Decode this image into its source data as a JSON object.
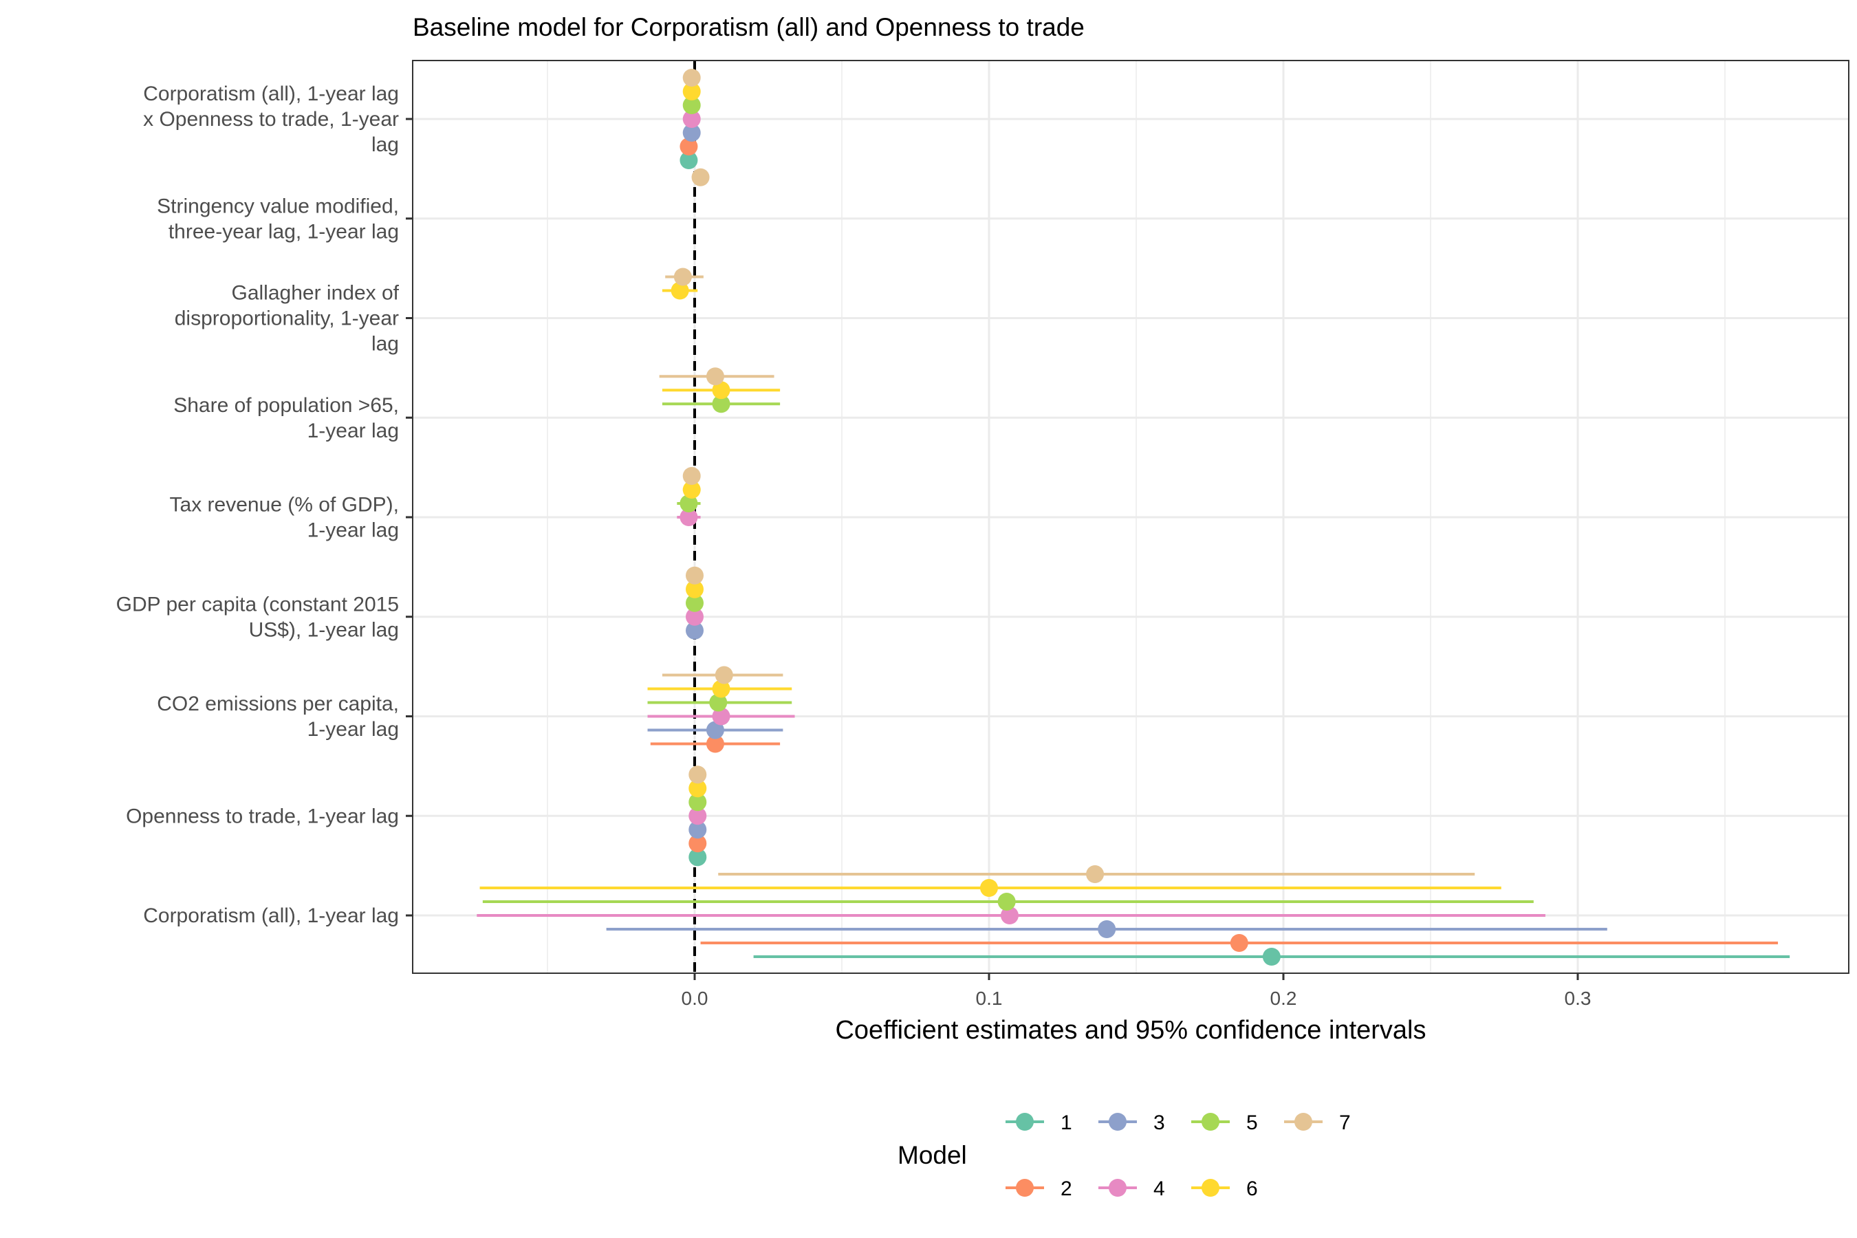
{
  "chart_data": {
    "type": "scatter",
    "subtype": "coefficient-plot-with-confidence-intervals",
    "title": "Baseline model for Corporatism (all) and Openness to trade",
    "xlabel": "Coefficient estimates and 95% confidence intervals",
    "ylabel": "",
    "xlim": [
      -0.097,
      0.39
    ],
    "x_ticks": [
      {
        "value": 0.0,
        "label": "0.0"
      },
      {
        "value": 0.1,
        "label": "0.1"
      },
      {
        "value": 0.2,
        "label": "0.2"
      },
      {
        "value": 0.3,
        "label": "0.3"
      }
    ],
    "reference_line": {
      "x": 0,
      "style": "dashed"
    },
    "grid": true,
    "legend": {
      "title": "Model",
      "position": "bottom",
      "rows": 2
    },
    "categories": [
      "Corporatism (all), 1-year lag\nx Openness to trade, 1-year\nlag",
      "Stringency value modified,\nthree-year lag, 1-year lag",
      "Gallagher index of\ndisproportionality, 1-year\nlag",
      "Share of population >65,\n1-year lag",
      "Tax revenue (% of GDP),\n1-year lag",
      "GDP per capita (constant 2015\nUS$), 1-year lag",
      "CO2 emissions per capita,\n1-year lag",
      "Openness to trade, 1-year lag",
      "Corporatism (all), 1-year lag"
    ],
    "series": [
      {
        "name": "1",
        "color": "#66C2A5",
        "estimates": [
          {
            "category": 0,
            "est": -0.002,
            "lo": -0.003,
            "hi": -0.001
          },
          {
            "category": 7,
            "est": 0.001,
            "lo": 0.0,
            "hi": 0.002
          },
          {
            "category": 8,
            "est": 0.196,
            "lo": 0.02,
            "hi": 0.372
          }
        ]
      },
      {
        "name": "2",
        "color": "#FC8D62",
        "estimates": [
          {
            "category": 0,
            "est": -0.002,
            "lo": -0.003,
            "hi": -0.001
          },
          {
            "category": 6,
            "est": 0.007,
            "lo": -0.015,
            "hi": 0.029
          },
          {
            "category": 7,
            "est": 0.001,
            "lo": 0.0,
            "hi": 0.002
          },
          {
            "category": 8,
            "est": 0.185,
            "lo": 0.002,
            "hi": 0.368
          }
        ]
      },
      {
        "name": "3",
        "color": "#8DA0CB",
        "estimates": [
          {
            "category": 0,
            "est": -0.001,
            "lo": -0.002,
            "hi": 0.0
          },
          {
            "category": 5,
            "est": 0.0,
            "lo": 0.0,
            "hi": 0.0
          },
          {
            "category": 6,
            "est": 0.007,
            "lo": -0.016,
            "hi": 0.03
          },
          {
            "category": 7,
            "est": 0.001,
            "lo": 0.0,
            "hi": 0.002
          },
          {
            "category": 8,
            "est": 0.14,
            "lo": -0.03,
            "hi": 0.31
          }
        ]
      },
      {
        "name": "4",
        "color": "#E78AC3",
        "estimates": [
          {
            "category": 0,
            "est": -0.001,
            "lo": -0.002,
            "hi": 0.0
          },
          {
            "category": 4,
            "est": -0.002,
            "lo": -0.006,
            "hi": 0.002
          },
          {
            "category": 5,
            "est": 0.0,
            "lo": 0.0,
            "hi": 0.0
          },
          {
            "category": 6,
            "est": 0.009,
            "lo": -0.016,
            "hi": 0.034
          },
          {
            "category": 7,
            "est": 0.001,
            "lo": 0.0,
            "hi": 0.002
          },
          {
            "category": 8,
            "est": 0.107,
            "lo": -0.074,
            "hi": 0.289
          }
        ]
      },
      {
        "name": "5",
        "color": "#A6D854",
        "estimates": [
          {
            "category": 0,
            "est": -0.001,
            "lo": -0.002,
            "hi": 0.0
          },
          {
            "category": 3,
            "est": 0.009,
            "lo": -0.011,
            "hi": 0.029
          },
          {
            "category": 4,
            "est": -0.002,
            "lo": -0.006,
            "hi": 0.002
          },
          {
            "category": 5,
            "est": 0.0,
            "lo": 0.0,
            "hi": 0.0
          },
          {
            "category": 6,
            "est": 0.008,
            "lo": -0.016,
            "hi": 0.033
          },
          {
            "category": 7,
            "est": 0.001,
            "lo": 0.0,
            "hi": 0.002
          },
          {
            "category": 8,
            "est": 0.106,
            "lo": -0.072,
            "hi": 0.285
          }
        ]
      },
      {
        "name": "6",
        "color": "#FFD92F",
        "estimates": [
          {
            "category": 0,
            "est": -0.001,
            "lo": -0.002,
            "hi": 0.0
          },
          {
            "category": 2,
            "est": -0.005,
            "lo": -0.011,
            "hi": 0.001
          },
          {
            "category": 3,
            "est": 0.009,
            "lo": -0.011,
            "hi": 0.029
          },
          {
            "category": 4,
            "est": -0.001,
            "lo": -0.004,
            "hi": 0.002
          },
          {
            "category": 5,
            "est": 0.0,
            "lo": 0.0,
            "hi": 0.0
          },
          {
            "category": 6,
            "est": 0.009,
            "lo": -0.016,
            "hi": 0.033
          },
          {
            "category": 7,
            "est": 0.001,
            "lo": 0.0,
            "hi": 0.002
          },
          {
            "category": 8,
            "est": 0.1,
            "lo": -0.073,
            "hi": 0.274
          }
        ]
      },
      {
        "name": "7",
        "color": "#E5C494",
        "estimates": [
          {
            "category": 0,
            "est": -0.001,
            "lo": -0.002,
            "hi": 0.0
          },
          {
            "category": 1,
            "est": 0.002,
            "lo": 0.001,
            "hi": 0.003
          },
          {
            "category": 2,
            "est": -0.004,
            "lo": -0.01,
            "hi": 0.003
          },
          {
            "category": 3,
            "est": 0.007,
            "lo": -0.012,
            "hi": 0.027
          },
          {
            "category": 4,
            "est": -0.001,
            "lo": -0.003,
            "hi": 0.001
          },
          {
            "category": 5,
            "est": 0.0,
            "lo": 0.0,
            "hi": 0.0
          },
          {
            "category": 6,
            "est": 0.01,
            "lo": -0.011,
            "hi": 0.03
          },
          {
            "category": 7,
            "est": 0.001,
            "lo": 0.0,
            "hi": 0.002
          },
          {
            "category": 8,
            "est": 0.136,
            "lo": 0.008,
            "hi": 0.265
          }
        ]
      }
    ]
  }
}
